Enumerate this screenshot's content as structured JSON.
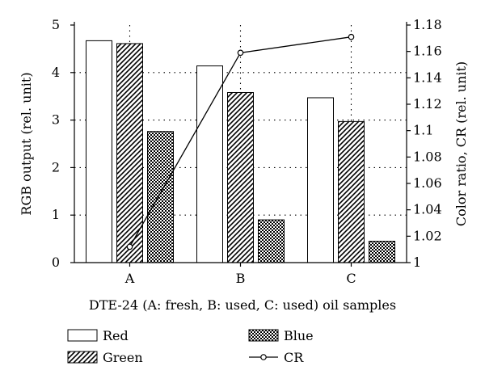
{
  "chart_data": {
    "type": "bar",
    "categories": [
      "A",
      "B",
      "C"
    ],
    "series": [
      {
        "name": "Red",
        "values": [
          4.67,
          4.14,
          3.47
        ],
        "pattern": "white"
      },
      {
        "name": "Green",
        "values": [
          4.61,
          3.58,
          2.97
        ],
        "pattern": "diagonal-hatch"
      },
      {
        "name": "Blue",
        "values": [
          2.76,
          0.9,
          0.45
        ],
        "pattern": "crosshatch"
      }
    ],
    "line_series": {
      "name": "CR",
      "axis": "right",
      "values": [
        1.012,
        1.159,
        1.171
      ]
    },
    "xlabel": "DTE-24 (A: fresh, B: used, C: used) oil samples",
    "ylabel_left": "RGB output (rel. unit)",
    "ylabel_right": "Color ratio, CR (rel. unit)",
    "ylim_left": [
      0,
      5
    ],
    "ylim_right": [
      1,
      1.18
    ],
    "yticks_left": [
      "0",
      "1",
      "2",
      "3",
      "4",
      "5"
    ],
    "yticks_right": [
      "1",
      "1.02",
      "1.04",
      "1.06",
      "1.08",
      "1.1",
      "1.12",
      "1.14",
      "1.16",
      "1.18"
    ],
    "grid": "dotted",
    "legend_placement": "bottom",
    "colors": {
      "axis": "#000000",
      "bar_fill": "#ffffff",
      "hatch": "#000000"
    }
  }
}
